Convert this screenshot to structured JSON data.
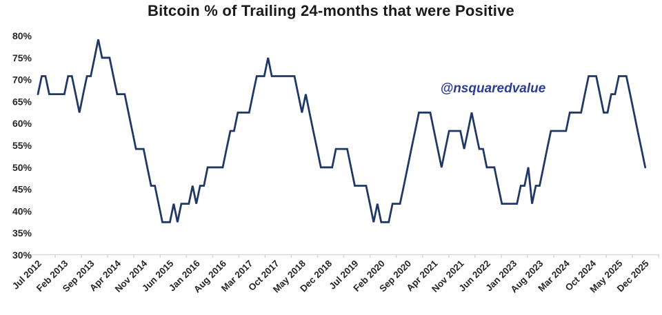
{
  "chart_data": {
    "type": "line",
    "title": "Bitcoin % of Trailing 24-months that were Positive",
    "watermark": "@nsquaredvalue",
    "grid": false,
    "legend": "none",
    "x_axis": {
      "start_month": "Jul 2012",
      "end_month": "Dec 2025",
      "tick_interval_months": 7,
      "tick_labels": [
        "Jul 2012",
        "Feb 2013",
        "Sep 2013",
        "Apr 2014",
        "Nov 2014",
        "Jun 2015",
        "Jan 2016",
        "Aug 2016",
        "Mar 2017",
        "Oct 2017",
        "May 2018",
        "Dec 2018",
        "Jul 2019",
        "Feb 2020",
        "Sep 2020",
        "Apr 2021",
        "Nov 2021",
        "Jun 2022",
        "Jan 2023",
        "Aug 2023",
        "Mar 2024",
        "Oct 2024",
        "May 2025",
        "Dec 2025"
      ]
    },
    "y_axis": {
      "ticks": [
        80,
        75,
        70,
        65,
        60,
        55,
        50,
        45,
        40,
        35,
        30
      ],
      "tick_suffix": "%",
      "ylim": [
        30,
        80
      ]
    },
    "series": [
      {
        "name": "Bitcoin % of trailing 24 months positive",
        "frequency": "monthly",
        "values": [
          66.7,
          70.8,
          70.8,
          66.7,
          66.7,
          66.7,
          66.7,
          66.7,
          70.8,
          70.8,
          66.7,
          62.5,
          66.7,
          70.8,
          70.8,
          75,
          79.2,
          75,
          75,
          75,
          70.8,
          66.7,
          66.7,
          66.7,
          62.5,
          58.3,
          54.2,
          54.2,
          54.2,
          50,
          45.8,
          45.8,
          41.7,
          37.5,
          37.5,
          37.5,
          41.7,
          37.5,
          41.7,
          41.7,
          41.7,
          45.8,
          41.7,
          45.8,
          45.8,
          50,
          50,
          50,
          50,
          50,
          54.2,
          58.3,
          58.3,
          62.5,
          62.5,
          62.5,
          62.5,
          66.7,
          70.8,
          70.8,
          70.8,
          75,
          70.8,
          70.8,
          70.8,
          70.8,
          70.8,
          70.8,
          70.8,
          66.7,
          62.5,
          66.7,
          62.5,
          58.3,
          54.2,
          50,
          50,
          50,
          50,
          54.2,
          54.2,
          54.2,
          54.2,
          50,
          45.8,
          45.8,
          45.8,
          45.8,
          41.7,
          37.5,
          41.7,
          37.5,
          37.5,
          37.5,
          41.7,
          41.7,
          41.7,
          45.8,
          50,
          54.2,
          58.3,
          62.5,
          62.5,
          62.5,
          62.5,
          58.3,
          54.2,
          50,
          54.2,
          58.3,
          58.3,
          58.3,
          58.3,
          54.2,
          58.3,
          62.5,
          58.3,
          54.2,
          54.2,
          50,
          50,
          50,
          45.8,
          41.7,
          41.7,
          41.7,
          41.7,
          41.7,
          45.8,
          45.8,
          50,
          41.7,
          45.8,
          45.8,
          50,
          54.2,
          58.3,
          58.3,
          58.3,
          58.3,
          58.3,
          62.5,
          62.5,
          62.5,
          62.5,
          66.7,
          70.8,
          70.8,
          70.8,
          66.7,
          62.5,
          62.5,
          66.7,
          66.7,
          70.8,
          70.8,
          70.8,
          66.7,
          62.5,
          58.3,
          54.2,
          50
        ]
      }
    ],
    "colors": {
      "line": "#1F3864",
      "axis_line": "#D9D9D9",
      "tick_text": "#262626",
      "title_text": "#1a1a1a",
      "watermark_text": "#2B3E93"
    }
  }
}
